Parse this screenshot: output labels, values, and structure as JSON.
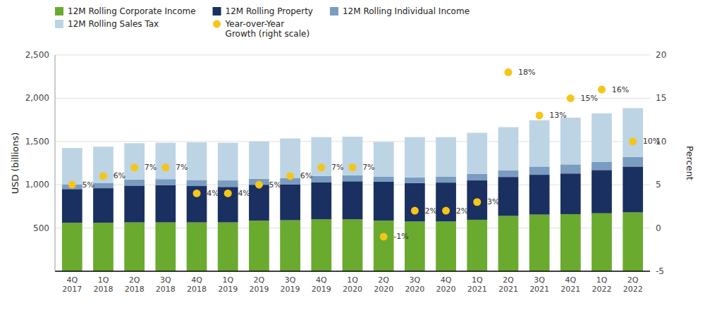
{
  "chart_data": {
    "type": "bar",
    "stacked": true,
    "categories": [
      "4Q\n2017",
      "1Q\n2018",
      "2Q\n2018",
      "3Q\n2018",
      "4Q\n2018",
      "1Q\n2019",
      "2Q\n2019",
      "3Q\n2019",
      "4Q\n2019",
      "1Q\n2020",
      "2Q\n2020",
      "3Q\n2020",
      "4Q\n2020",
      "1Q\n2021",
      "2Q\n2021",
      "3Q\n2021",
      "4Q\n2021",
      "1Q\n2022",
      "2Q\n2022"
    ],
    "series": [
      {
        "name": "12M Rolling Corporate Income",
        "color": "#6aaa2e",
        "values": [
          560,
          560,
          565,
          565,
          565,
          565,
          585,
          590,
          600,
          600,
          585,
          575,
          575,
          595,
          640,
          655,
          660,
          670,
          680
        ]
      },
      {
        "name": "12M Rolling Property",
        "color": "#1a3060",
        "values": [
          390,
          400,
          425,
          430,
          420,
          410,
          415,
          415,
          430,
          440,
          450,
          445,
          450,
          455,
          450,
          460,
          470,
          500,
          530
        ]
      },
      {
        "name": "12M Rolling Individual Income",
        "color": "#7a9cc0",
        "values": [
          55,
          60,
          70,
          70,
          70,
          75,
          70,
          70,
          70,
          70,
          60,
          65,
          70,
          75,
          75,
          95,
          105,
          95,
          110
        ]
      },
      {
        "name": "12M Rolling Sales Tax",
        "color": "#bdd4e4",
        "values": [
          420,
          420,
          420,
          420,
          435,
          435,
          430,
          460,
          450,
          445,
          400,
          465,
          455,
          475,
          500,
          535,
          540,
          560,
          565
        ]
      },
      {
        "name": "Year-over-Year\nGrowth (right scale)",
        "type": "scatter",
        "axis": "y2",
        "color": "#f5c518",
        "marker": "circle",
        "data_labels": true,
        "values": [
          5,
          6,
          7,
          7,
          4,
          4,
          5,
          6,
          7,
          7,
          -1,
          2,
          2,
          3,
          18,
          13,
          15,
          16,
          10
        ],
        "value_labels": [
          "5%",
          "6%",
          "7%",
          "7%",
          "4%",
          "4%",
          "5%",
          "6%",
          "7%",
          "7%",
          "-1%",
          "2%",
          "2%",
          "3%",
          "18%",
          "13%",
          "15%",
          "16%",
          "10%"
        ]
      }
    ],
    "ylabel": "USD (billions)",
    "y2label": "Percent",
    "ylim": [
      0,
      2500
    ],
    "yticks": [
      500,
      {
        "value": 1000,
        "label": "1,000"
      },
      {
        "value": 1500,
        "label": "1,500"
      },
      {
        "value": 2000,
        "label": "2,000"
      },
      {
        "value": 2500,
        "label": "2,500"
      }
    ],
    "y2lim": [
      -5,
      20
    ],
    "y2ticks": [
      -5,
      0,
      5,
      10,
      15,
      20
    ],
    "grid": true,
    "legend": "top"
  }
}
